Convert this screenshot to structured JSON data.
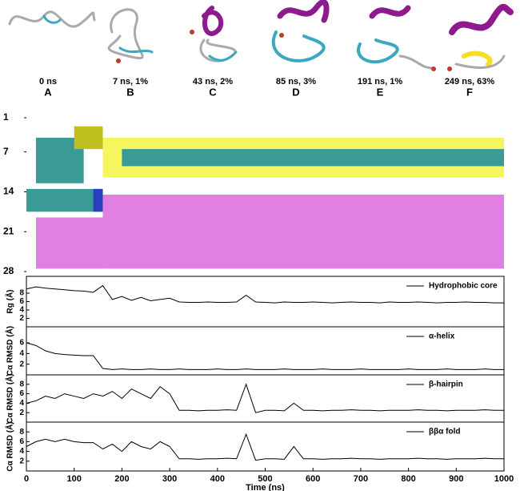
{
  "snapshots": [
    {
      "time": "0 ns",
      "letter": "A"
    },
    {
      "time": "7 ns, 1%",
      "letter": "B"
    },
    {
      "time": "43 ns, 2%",
      "letter": "C"
    },
    {
      "time": "85 ns, 3%",
      "letter": "D"
    },
    {
      "time": "191 ns, 1%",
      "letter": "E"
    },
    {
      "time": "249 ns, 63%",
      "letter": "F"
    }
  ],
  "chart_data": [
    {
      "type": "heatmap",
      "xlim": [
        0,
        1000
      ],
      "ylim": [
        1,
        28
      ],
      "yticks": [
        1,
        7,
        14,
        21,
        28
      ],
      "bands": [
        {
          "color": "#3a9a95",
          "residues": [
            5,
            12
          ],
          "time": [
            20,
            120
          ]
        },
        {
          "color": "#3a9a95",
          "residues": [
            14,
            17
          ],
          "time": [
            0,
            160
          ]
        },
        {
          "color": "#2a3fbf",
          "residues": [
            14,
            17
          ],
          "time": [
            140,
            160
          ]
        },
        {
          "color": "#e27fe2",
          "residues": [
            19,
            27
          ],
          "time": [
            20,
            160
          ]
        },
        {
          "color": "#e27fe2",
          "residues": [
            15,
            27
          ],
          "time": [
            160,
            1000
          ]
        },
        {
          "color": "#f5f560",
          "residues": [
            5,
            11
          ],
          "time": [
            160,
            1000
          ]
        },
        {
          "color": "#3a9a95",
          "residues": [
            7,
            9
          ],
          "time": [
            200,
            1000
          ]
        },
        {
          "color": "#bfbf20",
          "residues": [
            3,
            6
          ],
          "time": [
            100,
            160
          ]
        }
      ]
    },
    {
      "type": "line",
      "ylabel": "Rg (Å)",
      "xlim": [
        0,
        1000
      ],
      "ylim": [
        0,
        12
      ],
      "yticks": [
        2,
        4,
        6,
        8
      ],
      "x": [
        0,
        20,
        40,
        60,
        80,
        100,
        120,
        140,
        160,
        180,
        200,
        220,
        240,
        260,
        280,
        300,
        320,
        340,
        360,
        380,
        400,
        420,
        440,
        460,
        480,
        500,
        520,
        540,
        560,
        580,
        600,
        620,
        640,
        660,
        680,
        700,
        720,
        740,
        760,
        780,
        800,
        820,
        840,
        860,
        880,
        900,
        920,
        940,
        960,
        980,
        1000
      ],
      "series": [
        {
          "name": "Hydrophobic core",
          "color": "#000000",
          "values": [
            9,
            9.5,
            9.2,
            9,
            8.8,
            8.6,
            8.5,
            8.2,
            9.8,
            6.5,
            7.2,
            6.3,
            7,
            6.2,
            6.5,
            6.8,
            5.9,
            5.8,
            5.8,
            5.9,
            5.8,
            5.8,
            5.9,
            7.5,
            5.9,
            5.8,
            5.7,
            5.9,
            5.8,
            5.8,
            5.9,
            5.8,
            5.7,
            5.8,
            5.9,
            5.8,
            5.8,
            5.7,
            5.9,
            5.8,
            5.8,
            5.9,
            5.8,
            5.7,
            5.8,
            5.8,
            5.9,
            5.8,
            5.8,
            5.7,
            5.7
          ]
        }
      ]
    },
    {
      "type": "line",
      "ylabel": "Cα RMSD (Å)",
      "xlim": [
        0,
        1000
      ],
      "ylim": [
        0,
        9
      ],
      "yticks": [
        2,
        4,
        6
      ],
      "x": [
        0,
        20,
        40,
        60,
        80,
        100,
        120,
        140,
        160,
        180,
        200,
        220,
        240,
        260,
        280,
        300,
        320,
        340,
        360,
        380,
        400,
        420,
        440,
        460,
        480,
        500,
        520,
        540,
        560,
        580,
        600,
        620,
        640,
        660,
        680,
        700,
        720,
        740,
        760,
        780,
        800,
        820,
        840,
        860,
        880,
        900,
        920,
        940,
        960,
        980,
        1000
      ],
      "series": [
        {
          "name": "α-helix",
          "color": "#000000",
          "values": [
            6,
            5.5,
            4.5,
            4,
            3.8,
            3.7,
            3.6,
            3.6,
            1.2,
            1,
            1.1,
            1,
            1,
            1.1,
            1,
            1,
            1.1,
            1,
            1,
            1,
            1.1,
            1,
            1,
            1.1,
            1,
            1,
            1,
            1.1,
            1,
            1,
            1,
            1.1,
            1,
            1,
            1,
            1.1,
            1,
            1,
            1,
            1,
            1.1,
            1,
            1,
            1,
            1.1,
            1,
            1,
            1,
            1.1,
            1,
            1
          ]
        }
      ]
    },
    {
      "type": "line",
      "ylabel": "Cα RMSD (Å)",
      "xlim": [
        0,
        1000
      ],
      "ylim": [
        0,
        10
      ],
      "yticks": [
        2,
        4,
        6,
        8
      ],
      "x": [
        0,
        20,
        40,
        60,
        80,
        100,
        120,
        140,
        160,
        180,
        200,
        220,
        240,
        260,
        280,
        300,
        320,
        340,
        360,
        380,
        400,
        420,
        440,
        460,
        480,
        500,
        520,
        540,
        560,
        580,
        600,
        620,
        640,
        660,
        680,
        700,
        720,
        740,
        760,
        780,
        800,
        820,
        840,
        860,
        880,
        900,
        920,
        940,
        960,
        980,
        1000
      ],
      "series": [
        {
          "name": "β-hairpin",
          "color": "#000000",
          "values": [
            4,
            4.5,
            5.5,
            5,
            6,
            5.5,
            5,
            6,
            5.5,
            6.5,
            5,
            7,
            6,
            5,
            7.5,
            6,
            2.5,
            2.5,
            2.4,
            2.5,
            2.5,
            2.6,
            2.5,
            8,
            2,
            2.5,
            2.5,
            2.4,
            4,
            2.5,
            2.5,
            2.4,
            2.5,
            2.5,
            2.6,
            2.5,
            2.5,
            2.4,
            2.5,
            2.5,
            2.5,
            2.6,
            2.5,
            2.5,
            2.4,
            2.5,
            2.5,
            2.5,
            2.6,
            2.5,
            2.5
          ]
        }
      ]
    },
    {
      "type": "line",
      "ylabel": "Cα RMSD (Å)",
      "xlabel": "Time (ns)",
      "xlim": [
        0,
        1000
      ],
      "ylim": [
        0,
        10
      ],
      "yticks": [
        2,
        4,
        6,
        8
      ],
      "xticks": [
        0,
        100,
        200,
        300,
        400,
        500,
        600,
        700,
        800,
        900,
        1000
      ],
      "x": [
        0,
        20,
        40,
        60,
        80,
        100,
        120,
        140,
        160,
        180,
        200,
        220,
        240,
        260,
        280,
        300,
        320,
        340,
        360,
        380,
        400,
        420,
        440,
        460,
        480,
        500,
        520,
        540,
        560,
        580,
        600,
        620,
        640,
        660,
        680,
        700,
        720,
        740,
        760,
        780,
        800,
        820,
        840,
        860,
        880,
        900,
        920,
        940,
        960,
        980,
        1000
      ],
      "series": [
        {
          "name": "ββα fold",
          "color": "#000000",
          "values": [
            5,
            6,
            6.5,
            6,
            6.5,
            6,
            5.8,
            5.8,
            4.5,
            5.5,
            4,
            6,
            5,
            4.5,
            6,
            5,
            2.5,
            2.5,
            2.4,
            2.5,
            2.5,
            2.6,
            2.5,
            7.5,
            2.2,
            2.5,
            2.5,
            2.4,
            5,
            2.5,
            2.5,
            2.4,
            2.5,
            2.5,
            2.6,
            2.5,
            2.5,
            2.4,
            2.5,
            2.5,
            2.5,
            2.6,
            2.5,
            2.5,
            2.4,
            2.5,
            2.5,
            2.5,
            2.6,
            2.5,
            2.5
          ]
        }
      ]
    }
  ]
}
